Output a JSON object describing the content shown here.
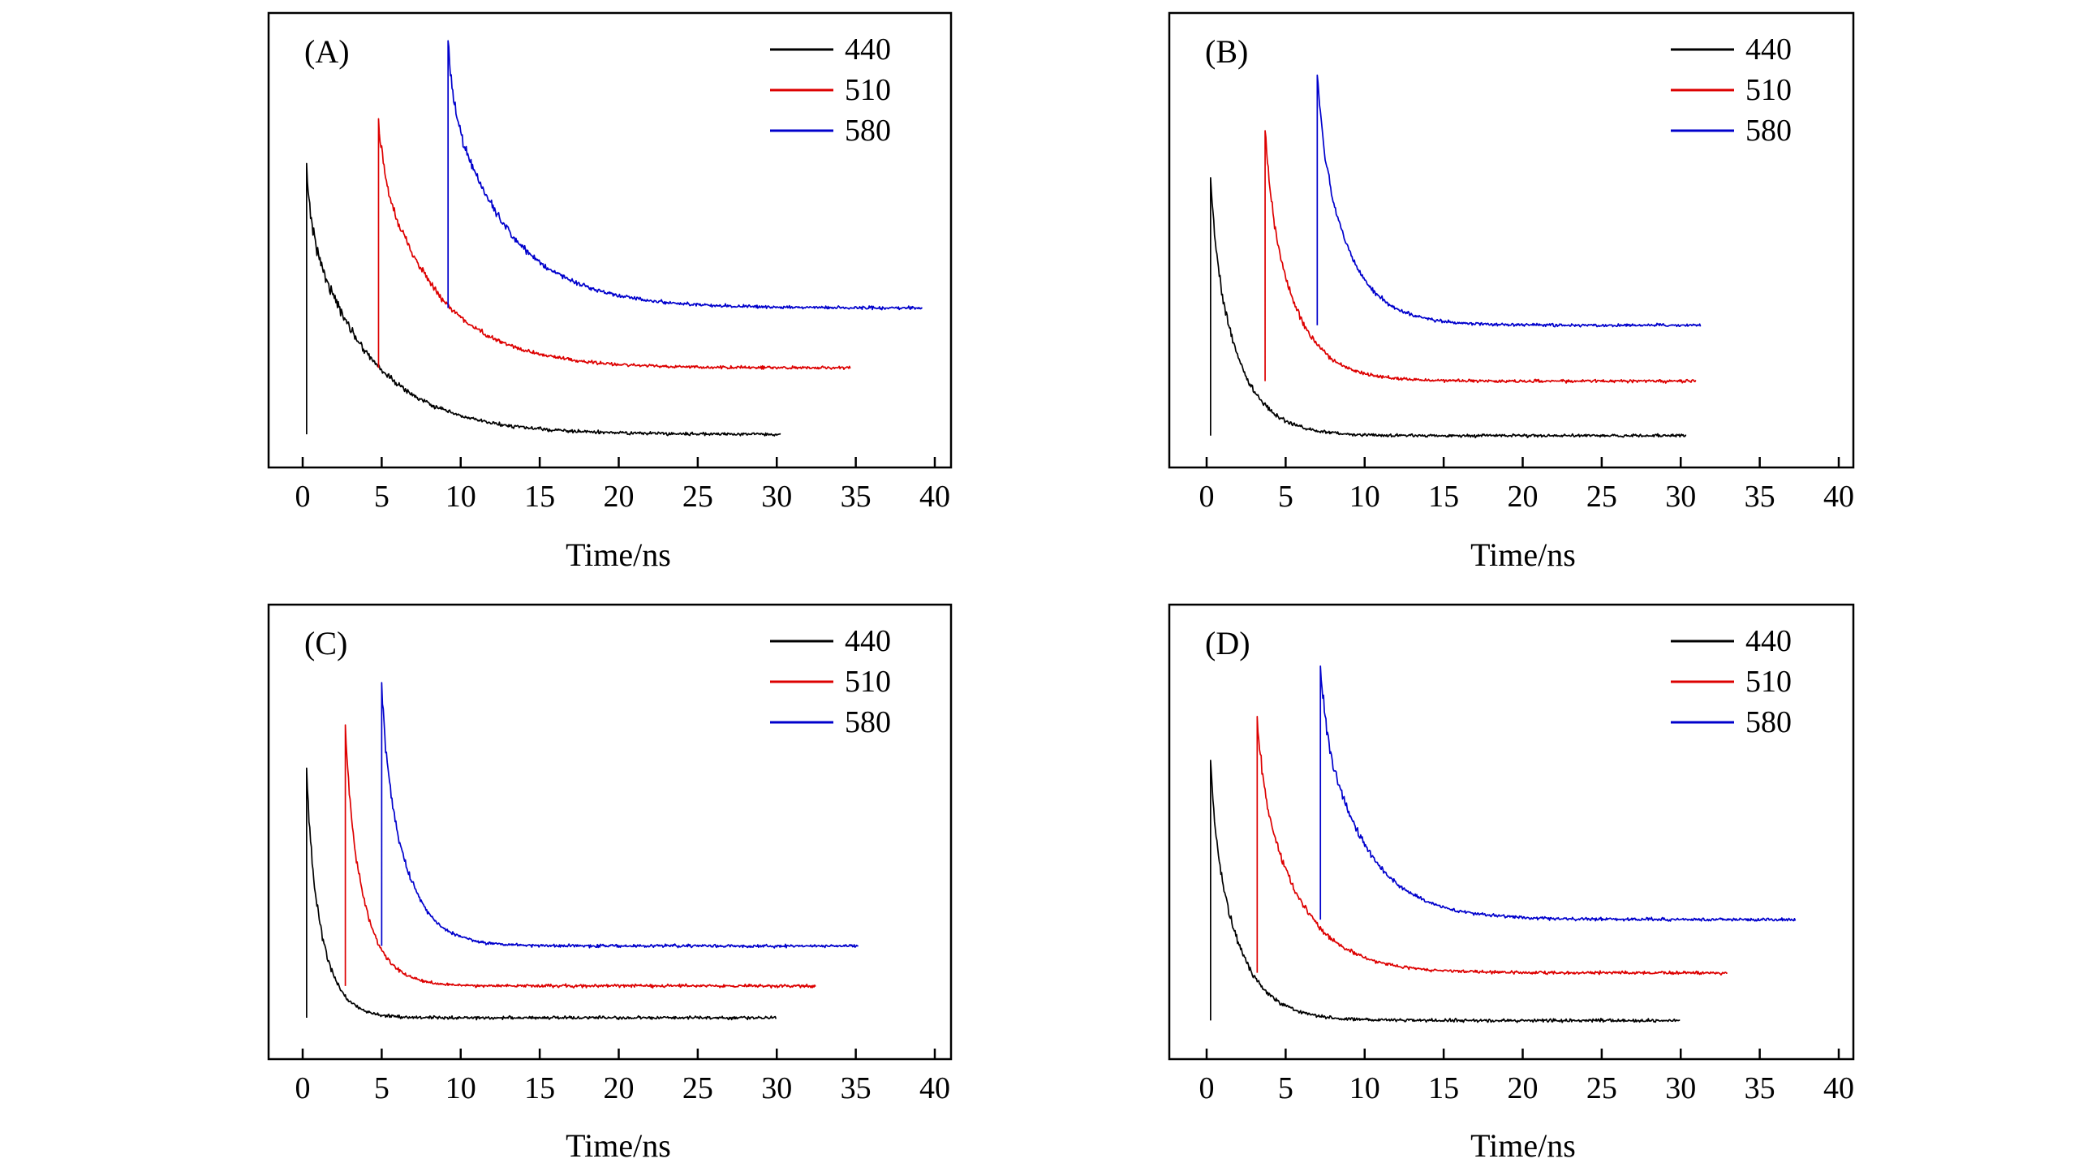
{
  "figure": {
    "background": "#ffffff",
    "xlabel": "Time/ns",
    "xlim": [
      0,
      40
    ],
    "x_ticks": [
      0,
      5,
      10,
      15,
      20,
      25,
      30,
      35,
      40
    ]
  },
  "legend": {
    "items": [
      {
        "label": "440",
        "color": "#000000"
      },
      {
        "label": "510",
        "color": "#dd0000"
      },
      {
        "label": "580",
        "color": "#0000cc"
      }
    ]
  },
  "chart_data": [
    {
      "panel_label": "(A)",
      "type": "line",
      "title": "",
      "xlabel": "Time/ns",
      "ylabel": "",
      "xlim": [
        0,
        40
      ],
      "x_ticks": [
        0,
        5,
        10,
        15,
        20,
        25,
        30,
        35,
        40
      ],
      "y_units": "intensity, arbitrary units (normalized 0-1 of axis height)",
      "legend_position": "top-right-inside",
      "grid": false,
      "model": {
        "form": "biexponential_decay",
        "tau_fast_ns": 0.3,
        "fast_fraction": 0.2
      },
      "noise": {
        "base": 0.005,
        "proportional": 0.035
      },
      "series": [
        {
          "name": "440",
          "color": "#000000",
          "t_start_ns": 0.25,
          "t_end_ns": 30.3,
          "peak": 0.655,
          "baseline": 0.073,
          "tau_ns": 4.0
        },
        {
          "name": "510",
          "color": "#dd0000",
          "t_start_ns": 4.8,
          "t_end_ns": 34.7,
          "peak": 0.772,
          "baseline": 0.219,
          "tau_ns": 3.8
        },
        {
          "name": "580",
          "color": "#0000cc",
          "t_start_ns": 9.2,
          "t_end_ns": 39.2,
          "peak": 0.933,
          "baseline": 0.351,
          "tau_ns": 3.8
        }
      ]
    },
    {
      "panel_label": "(B)",
      "type": "line",
      "title": "",
      "xlabel": "Time/ns",
      "ylabel": "",
      "xlim": [
        0,
        40
      ],
      "x_ticks": [
        0,
        5,
        10,
        15,
        20,
        25,
        30,
        35,
        40
      ],
      "y_units": "intensity, arbitrary units (normalized 0-1 of axis height)",
      "legend_position": "top-right-inside",
      "grid": false,
      "model": {
        "form": "biexponential_decay",
        "tau_fast_ns": 0.3,
        "fast_fraction": 0.2
      },
      "noise": {
        "base": 0.005,
        "proportional": 0.035
      },
      "series": [
        {
          "name": "440",
          "color": "#000000",
          "t_start_ns": 0.25,
          "t_end_ns": 30.4,
          "peak": 0.64,
          "baseline": 0.07,
          "tau_ns": 1.8
        },
        {
          "name": "510",
          "color": "#dd0000",
          "t_start_ns": 3.7,
          "t_end_ns": 31.0,
          "peak": 0.757,
          "baseline": 0.19,
          "tau_ns": 1.9
        },
        {
          "name": "580",
          "color": "#0000cc",
          "t_start_ns": 7.0,
          "t_end_ns": 31.3,
          "peak": 0.874,
          "baseline": 0.313,
          "tau_ns": 2.0
        }
      ]
    },
    {
      "panel_label": "(C)",
      "type": "line",
      "title": "",
      "xlabel": "Time/ns",
      "ylabel": "",
      "xlim": [
        0,
        40
      ],
      "x_ticks": [
        0,
        5,
        10,
        15,
        20,
        25,
        30,
        35,
        40
      ],
      "y_units": "intensity, arbitrary units (normalized 0-1 of axis height)",
      "legend_position": "top-right-inside",
      "grid": false,
      "model": {
        "form": "biexponential_decay",
        "tau_fast_ns": 0.25,
        "fast_fraction": 0.2
      },
      "noise": {
        "base": 0.005,
        "proportional": 0.035
      },
      "series": [
        {
          "name": "440",
          "color": "#000000",
          "t_start_ns": 0.25,
          "t_end_ns": 30.0,
          "peak": 0.64,
          "baseline": 0.091,
          "tau_ns": 1.1
        },
        {
          "name": "510",
          "color": "#dd0000",
          "t_start_ns": 2.7,
          "t_end_ns": 32.5,
          "peak": 0.746,
          "baseline": 0.161,
          "tau_ns": 1.3
        },
        {
          "name": "580",
          "color": "#0000cc",
          "t_start_ns": 5.0,
          "t_end_ns": 35.2,
          "peak": 0.833,
          "baseline": 0.249,
          "tau_ns": 1.6
        }
      ]
    },
    {
      "panel_label": "(D)",
      "type": "line",
      "title": "",
      "xlabel": "Time/ns",
      "ylabel": "",
      "xlim": [
        0,
        40
      ],
      "x_ticks": [
        0,
        5,
        10,
        15,
        20,
        25,
        30,
        35,
        40
      ],
      "y_units": "intensity, arbitrary units (normalized 0-1 of axis height)",
      "legend_position": "top-right-inside",
      "grid": false,
      "model": {
        "form": "biexponential_decay",
        "tau_fast_ns": 0.3,
        "fast_fraction": 0.2
      },
      "noise": {
        "base": 0.005,
        "proportional": 0.035
      },
      "series": [
        {
          "name": "440",
          "color": "#000000",
          "t_start_ns": 0.25,
          "t_end_ns": 30.0,
          "peak": 0.65,
          "baseline": 0.085,
          "tau_ns": 1.8
        },
        {
          "name": "510",
          "color": "#dd0000",
          "t_start_ns": 3.2,
          "t_end_ns": 33.0,
          "peak": 0.76,
          "baseline": 0.19,
          "tau_ns": 2.6
        },
        {
          "name": "580",
          "color": "#0000cc",
          "t_start_ns": 7.2,
          "t_end_ns": 37.3,
          "peak": 0.868,
          "baseline": 0.307,
          "tau_ns": 2.8
        }
      ]
    }
  ]
}
